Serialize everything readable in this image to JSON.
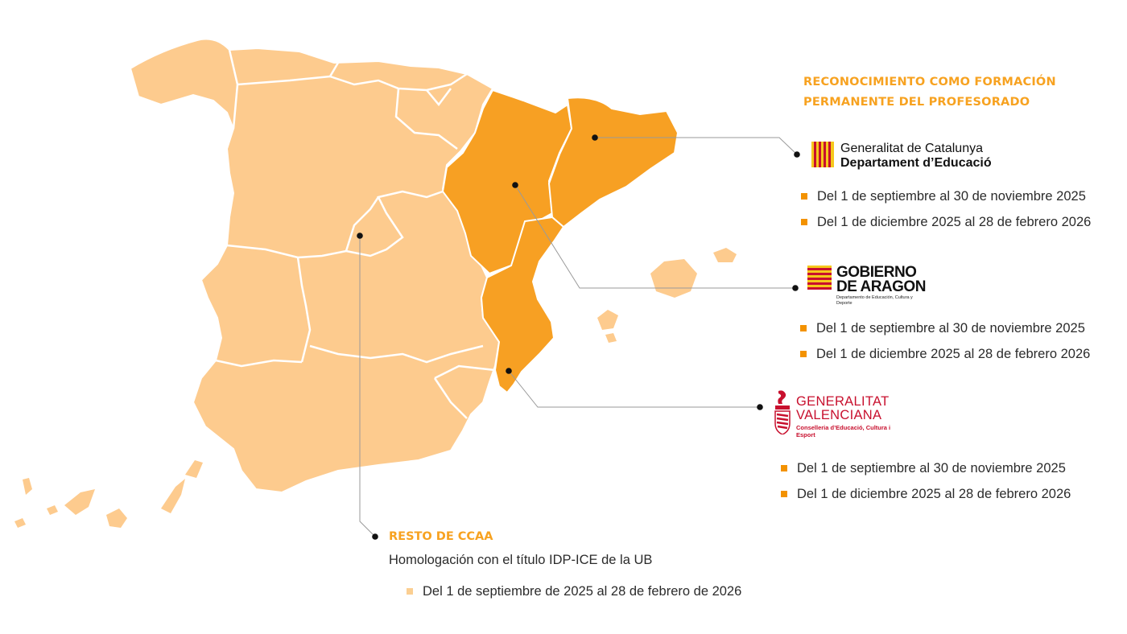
{
  "heading": {
    "line1": "RECONOCIMIENTO COMO FORMACIÓN",
    "line2": "PERMANENTE DEL PROFESORADO"
  },
  "colors": {
    "highlight_region": "#f7a023",
    "other_region": "#fdcb8e",
    "heading_text": "#f7a220",
    "bullet_dark": "#f39200",
    "bullet_light": "#fbcf92",
    "valencia_red": "#c8102e"
  },
  "catalunya": {
    "logo_icon": "senyera-icon",
    "logo_line1": "Generalitat de Catalunya",
    "logo_line2": "Departament d’Educació",
    "dates": [
      "Del 1 de septiembre al 30 de noviembre 2025",
      "Del 1 de diciembre 2025 al 28 de febrero 2026"
    ]
  },
  "aragon": {
    "logo_icon": "aragon-flag-icon",
    "logo_line1": "GOBIERNO",
    "logo_line2": "DE ARAGON",
    "logo_sub": "Departamento de Educación, Cultura y Deporte",
    "dates": [
      "Del 1 de septiembre al 30 de noviembre 2025",
      "Del 1 de diciembre 2025 al 28 de febrero 2026"
    ]
  },
  "valencia": {
    "logo_icon": "valencia-crest-icon",
    "logo_line1": "GENERALITAT",
    "logo_line2": "VALENCIANA",
    "logo_sub": "Conselleria d’Educació, Cultura i Esport",
    "dates": [
      "Del 1 de septiembre al 30 de noviembre 2025",
      "Del 1 de diciembre 2025 al 28 de febrero 2026"
    ]
  },
  "resto": {
    "title": "RESTO DE CCAA",
    "description": "Homologación con el título IDP-ICE de la UB",
    "dates": [
      "Del 1 de septiembre de 2025 al 28 de febrero de 2026"
    ]
  }
}
